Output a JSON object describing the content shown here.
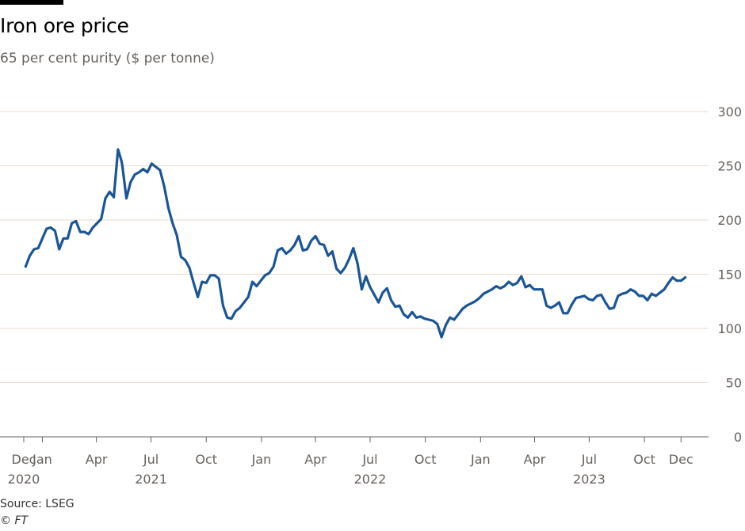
{
  "header": {
    "title": "Iron ore price",
    "subtitle": "65 per cent purity ($ per tonne)"
  },
  "footer": {
    "source": "Source: LSEG",
    "copyright": "© FT"
  },
  "colors": {
    "line": "#1a5597",
    "grid": "#e9d9cc",
    "axis": "#66605c",
    "text": "#66605c"
  },
  "chart_data": {
    "type": "line",
    "title": "Iron ore price",
    "subtitle": "65 per cent purity ($ per tonne)",
    "xlabel": "",
    "ylabel": "",
    "ylim": [
      0,
      300
    ],
    "xlim": [
      "2020-12-01",
      "2023-12-31"
    ],
    "grid": true,
    "y_axis_position": "right",
    "y_ticks": [
      0,
      50,
      100,
      150,
      200,
      250,
      300
    ],
    "x_ticks": [
      {
        "date": "2020-12-01",
        "label": "Dec",
        "year": "2020"
      },
      {
        "date": "2021-01-01",
        "label": "Jan",
        "year": ""
      },
      {
        "date": "2021-04-01",
        "label": "Apr",
        "year": ""
      },
      {
        "date": "2021-07-01",
        "label": "Jul",
        "year": "2021"
      },
      {
        "date": "2021-10-01",
        "label": "Oct",
        "year": ""
      },
      {
        "date": "2022-01-01",
        "label": "Jan",
        "year": ""
      },
      {
        "date": "2022-04-01",
        "label": "Apr",
        "year": ""
      },
      {
        "date": "2022-07-01",
        "label": "Jul",
        "year": "2022"
      },
      {
        "date": "2022-10-01",
        "label": "Oct",
        "year": ""
      },
      {
        "date": "2023-01-01",
        "label": "Jan",
        "year": ""
      },
      {
        "date": "2023-04-01",
        "label": "Apr",
        "year": ""
      },
      {
        "date": "2023-07-01",
        "label": "Jul",
        "year": "2023"
      },
      {
        "date": "2023-10-01",
        "label": "Oct",
        "year": ""
      },
      {
        "date": "2023-12-01",
        "label": "Dec",
        "year": ""
      }
    ],
    "series": [
      {
        "name": "",
        "x": [
          "2020-12-04",
          "2020-12-11",
          "2020-12-18",
          "2020-12-25",
          "2021-01-01",
          "2021-01-08",
          "2021-01-15",
          "2021-01-22",
          "2021-01-29",
          "2021-02-05",
          "2021-02-12",
          "2021-02-19",
          "2021-02-26",
          "2021-03-05",
          "2021-03-12",
          "2021-03-19",
          "2021-03-26",
          "2021-04-02",
          "2021-04-09",
          "2021-04-16",
          "2021-04-23",
          "2021-04-30",
          "2021-05-07",
          "2021-05-12",
          "2021-05-14",
          "2021-05-21",
          "2021-05-28",
          "2021-06-04",
          "2021-06-11",
          "2021-06-18",
          "2021-06-25",
          "2021-07-02",
          "2021-07-09",
          "2021-07-16",
          "2021-07-23",
          "2021-07-30",
          "2021-08-06",
          "2021-08-13",
          "2021-08-20",
          "2021-08-27",
          "2021-09-03",
          "2021-09-10",
          "2021-09-17",
          "2021-09-24",
          "2021-10-01",
          "2021-10-08",
          "2021-10-15",
          "2021-10-22",
          "2021-10-29",
          "2021-11-05",
          "2021-11-12",
          "2021-11-19",
          "2021-11-26",
          "2021-12-03",
          "2021-12-10",
          "2021-12-17",
          "2021-12-24",
          "2021-12-31",
          "2022-01-07",
          "2022-01-14",
          "2022-01-21",
          "2022-01-28",
          "2022-02-04",
          "2022-02-11",
          "2022-02-18",
          "2022-02-25",
          "2022-03-04",
          "2022-03-11",
          "2022-03-18",
          "2022-03-25",
          "2022-04-01",
          "2022-04-08",
          "2022-04-15",
          "2022-04-22",
          "2022-04-29",
          "2022-05-06",
          "2022-05-13",
          "2022-05-20",
          "2022-05-27",
          "2022-06-03",
          "2022-06-10",
          "2022-06-17",
          "2022-06-24",
          "2022-07-01",
          "2022-07-08",
          "2022-07-15",
          "2022-07-22",
          "2022-07-29",
          "2022-08-05",
          "2022-08-12",
          "2022-08-19",
          "2022-08-26",
          "2022-09-02",
          "2022-09-09",
          "2022-09-16",
          "2022-09-23",
          "2022-09-30",
          "2022-10-07",
          "2022-10-14",
          "2022-10-21",
          "2022-10-28",
          "2022-11-04",
          "2022-11-11",
          "2022-11-18",
          "2022-11-25",
          "2022-12-02",
          "2022-12-09",
          "2022-12-16",
          "2022-12-23",
          "2022-12-30",
          "2023-01-06",
          "2023-01-13",
          "2023-01-20",
          "2023-01-27",
          "2023-02-03",
          "2023-02-10",
          "2023-02-17",
          "2023-02-24",
          "2023-03-03",
          "2023-03-10",
          "2023-03-17",
          "2023-03-24",
          "2023-03-31",
          "2023-04-07",
          "2023-04-14",
          "2023-04-21",
          "2023-04-28",
          "2023-05-05",
          "2023-05-12",
          "2023-05-19",
          "2023-05-26",
          "2023-06-02",
          "2023-06-09",
          "2023-06-16",
          "2023-06-23",
          "2023-06-30",
          "2023-07-07",
          "2023-07-14",
          "2023-07-21",
          "2023-07-28",
          "2023-08-04",
          "2023-08-11",
          "2023-08-18",
          "2023-08-25",
          "2023-09-01",
          "2023-09-08",
          "2023-09-15",
          "2023-09-22",
          "2023-09-29",
          "2023-10-06",
          "2023-10-13",
          "2023-10-20",
          "2023-10-27",
          "2023-11-03",
          "2023-11-10",
          "2023-11-17",
          "2023-11-24",
          "2023-12-01",
          "2023-12-08"
        ],
        "values": [
          157,
          167,
          173,
          174,
          183,
          192,
          193,
          190,
          173,
          183,
          183,
          197,
          199,
          189,
          189,
          187,
          193,
          197,
          201,
          220,
          226,
          221,
          265,
          256,
          251,
          220,
          235,
          242,
          244,
          247,
          244,
          252,
          249,
          246,
          231,
          211,
          197,
          186,
          166,
          163,
          156,
          142,
          129,
          143,
          142,
          149,
          149,
          146,
          121,
          110,
          109,
          116,
          119,
          124,
          129,
          143,
          139,
          144,
          149,
          151,
          157,
          172,
          174,
          169,
          172,
          177,
          185,
          172,
          173,
          181,
          185,
          178,
          177,
          167,
          171,
          155,
          151,
          156,
          164,
          174,
          160,
          136,
          148,
          138,
          131,
          124,
          133,
          137,
          126,
          120,
          121,
          113,
          110,
          115,
          110,
          111,
          109,
          108,
          107,
          104,
          92,
          103,
          110,
          108,
          113,
          118,
          121,
          123,
          125,
          128,
          132,
          134,
          136,
          139,
          137,
          139,
          143,
          140,
          142,
          148,
          138,
          140,
          136,
          136,
          136,
          121,
          119,
          121,
          124,
          114,
          114,
          122,
          128,
          129,
          130,
          127,
          126,
          130,
          131,
          124,
          118,
          119,
          130,
          132,
          133,
          136,
          134,
          130,
          130,
          126,
          132,
          130,
          133,
          136,
          142,
          147,
          144,
          144,
          147
        ]
      }
    ]
  }
}
